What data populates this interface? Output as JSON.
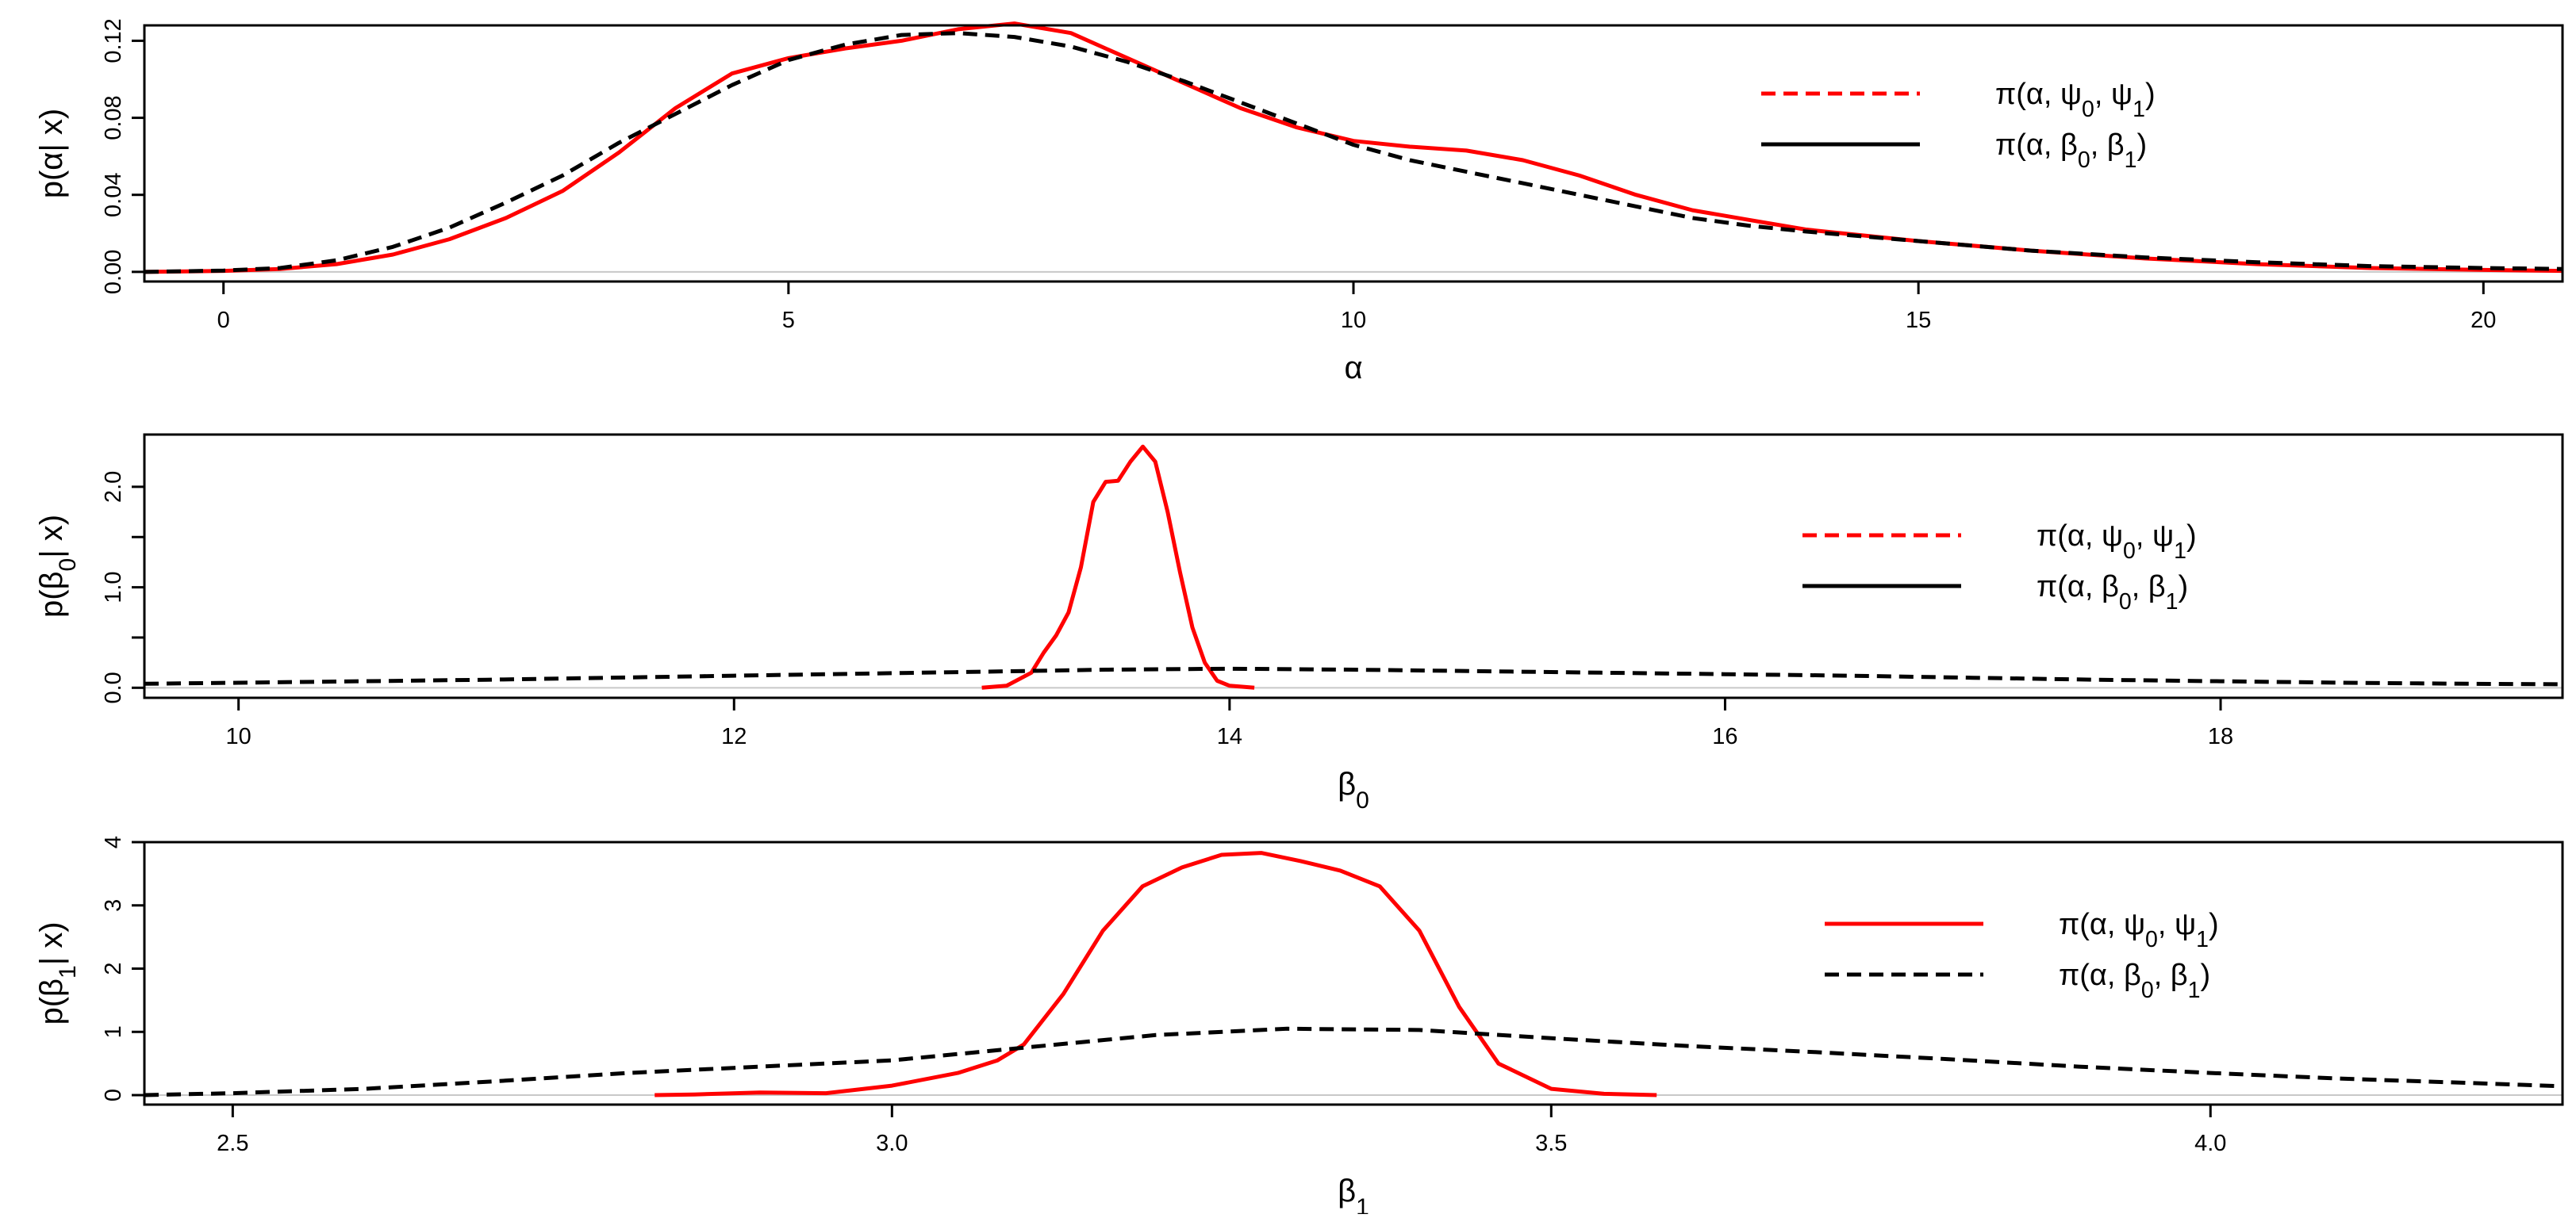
{
  "chart_data": [
    {
      "type": "line",
      "xlabel": "α",
      "ylabel": "p(α| x)",
      "xlim": [
        -0.7,
        20.7
      ],
      "ylim": [
        -0.005,
        0.128
      ],
      "xticks": [
        0,
        5,
        10,
        15,
        20
      ],
      "xtick_labels": [
        "0",
        "5",
        "10",
        "15",
        "20"
      ],
      "yticks": [
        0,
        0.04,
        0.08,
        0.12
      ],
      "ytick_labels": [
        "0.00",
        "0.04",
        "0.08",
        "0.12"
      ],
      "zero_line": true,
      "legend_position": "top-right",
      "legend": [
        {
          "label": "π(α, ψ0, ψ1)",
          "parts": [
            [
              "π(α, ψ",
              ""
            ],
            [
              "0",
              "sub"
            ],
            [
              ", ψ",
              ""
            ],
            [
              "1",
              "sub"
            ],
            [
              ")",
              ""
            ]
          ],
          "color": "#ff0000",
          "dash": "dashed"
        },
        {
          "label": "π(α, β0, β1)",
          "parts": [
            [
              "π(α, β",
              ""
            ],
            [
              "0",
              "sub"
            ],
            [
              ", β",
              ""
            ],
            [
              "1",
              "sub"
            ],
            [
              ")",
              ""
            ]
          ],
          "color": "#000000",
          "dash": "solid"
        }
      ],
      "series": [
        {
          "color": "#ff0000",
          "dash": "solid",
          "x": [
            -0.7,
            0,
            0.5,
            1,
            1.5,
            2,
            2.5,
            3,
            3.5,
            4,
            4.5,
            5,
            5.5,
            6,
            6.5,
            7,
            7.5,
            8,
            8.5,
            9,
            9.5,
            10,
            10.5,
            11,
            11.5,
            12,
            12.5,
            13,
            13.5,
            14,
            15,
            16,
            17,
            18,
            19,
            20,
            20.7
          ],
          "y": [
            0.0,
            0.0005,
            0.0015,
            0.004,
            0.009,
            0.017,
            0.028,
            0.042,
            0.062,
            0.085,
            0.103,
            0.111,
            0.116,
            0.12,
            0.126,
            0.129,
            0.124,
            0.111,
            0.098,
            0.085,
            0.075,
            0.068,
            0.065,
            0.063,
            0.058,
            0.05,
            0.04,
            0.032,
            0.027,
            0.022,
            0.016,
            0.011,
            0.007,
            0.004,
            0.002,
            0.001,
            0.0005
          ]
        },
        {
          "color": "#000000",
          "dash": "dashed",
          "x": [
            -0.7,
            0,
            0.5,
            1,
            1.5,
            2,
            2.5,
            3,
            3.5,
            4,
            4.5,
            5,
            5.5,
            6,
            6.5,
            7,
            7.5,
            8,
            8.5,
            9,
            9.5,
            10,
            10.5,
            11,
            11.5,
            12,
            12.5,
            13,
            13.5,
            14,
            15,
            16,
            17,
            18,
            19,
            20,
            20.7
          ],
          "y": [
            0.0,
            0.0007,
            0.002,
            0.006,
            0.013,
            0.023,
            0.036,
            0.05,
            0.067,
            0.082,
            0.097,
            0.11,
            0.118,
            0.123,
            0.124,
            0.122,
            0.117,
            0.109,
            0.099,
            0.088,
            0.077,
            0.066,
            0.058,
            0.052,
            0.046,
            0.04,
            0.034,
            0.028,
            0.024,
            0.021,
            0.016,
            0.011,
            0.0075,
            0.005,
            0.003,
            0.002,
            0.0015
          ]
        }
      ]
    },
    {
      "type": "line",
      "xlabel": "β0",
      "xlabel_parts": [
        [
          "β",
          ""
        ],
        [
          "0",
          "sub"
        ]
      ],
      "ylabel": "p(β0| x)",
      "ylabel_parts": [
        [
          "p(β",
          ""
        ],
        [
          "0",
          "sub"
        ],
        [
          "| x)",
          ""
        ]
      ],
      "xlim": [
        9.62,
        19.38
      ],
      "ylim": [
        -0.1,
        2.52
      ],
      "xticks": [
        10,
        12,
        14,
        16,
        18
      ],
      "xtick_labels": [
        "10",
        "12",
        "14",
        "16",
        "18"
      ],
      "yticks": [
        0.0,
        0.5,
        1.0,
        1.5,
        2.0
      ],
      "ytick_labels": [
        "0.0",
        "",
        "1.0",
        "",
        "2.0"
      ],
      "zero_line": true,
      "legend_position": "top-right",
      "legend": [
        {
          "label": "π(α, ψ0, ψ1)",
          "parts": [
            [
              "π(α, ψ",
              ""
            ],
            [
              "0",
              "sub"
            ],
            [
              ", ψ",
              ""
            ],
            [
              "1",
              "sub"
            ],
            [
              ")",
              ""
            ]
          ],
          "color": "#ff0000",
          "dash": "dashed"
        },
        {
          "label": "π(α, β0, β1)",
          "parts": [
            [
              "π(α, β",
              ""
            ],
            [
              "0",
              "sub"
            ],
            [
              ", β",
              ""
            ],
            [
              "1",
              "sub"
            ],
            [
              ")",
              ""
            ]
          ],
          "color": "#000000",
          "dash": "solid"
        }
      ],
      "series": [
        {
          "color": "#ff0000",
          "dash": "solid",
          "x": [
            13.0,
            13.1,
            13.2,
            13.25,
            13.3,
            13.35,
            13.4,
            13.45,
            13.5,
            13.55,
            13.6,
            13.65,
            13.7,
            13.75,
            13.8,
            13.85,
            13.9,
            13.95,
            14.0,
            14.1
          ],
          "y": [
            0.0,
            0.02,
            0.15,
            0.35,
            0.52,
            0.75,
            1.2,
            1.85,
            2.05,
            2.06,
            2.25,
            2.4,
            2.25,
            1.75,
            1.15,
            0.6,
            0.25,
            0.07,
            0.02,
            0.0
          ]
        },
        {
          "color": "#000000",
          "dash": "dashed",
          "x": [
            9.62,
            10,
            10.5,
            11,
            11.5,
            12,
            12.5,
            13,
            13.5,
            14,
            14.5,
            15,
            15.5,
            16,
            16.5,
            17,
            17.5,
            18,
            18.5,
            19,
            19.38
          ],
          "y": [
            0.04,
            0.05,
            0.065,
            0.08,
            0.1,
            0.12,
            0.14,
            0.16,
            0.18,
            0.19,
            0.18,
            0.165,
            0.15,
            0.135,
            0.12,
            0.1,
            0.08,
            0.065,
            0.05,
            0.04,
            0.035
          ]
        }
      ]
    },
    {
      "type": "line",
      "xlabel": "β1",
      "xlabel_parts": [
        [
          "β",
          ""
        ],
        [
          "1",
          "sub"
        ]
      ],
      "ylabel": "p(β1| x)",
      "ylabel_parts": [
        [
          "p(β",
          ""
        ],
        [
          "1",
          "sub"
        ],
        [
          "| x)",
          ""
        ]
      ],
      "xlim": [
        2.433,
        4.267
      ],
      "ylim": [
        -0.15,
        4.0
      ],
      "xticks": [
        2.5,
        3.0,
        3.5,
        4.0
      ],
      "xtick_labels": [
        "2.5",
        "3.0",
        "3.5",
        "4.0"
      ],
      "yticks": [
        0,
        1,
        2,
        3,
        4
      ],
      "ytick_labels": [
        "0",
        "1",
        "2",
        "3",
        "4"
      ],
      "zero_line": true,
      "legend_position": "top-right",
      "legend": [
        {
          "label": "π(α, ψ0, ψ1)",
          "parts": [
            [
              "π(α, ψ",
              ""
            ],
            [
              "0",
              "sub"
            ],
            [
              ", ψ",
              ""
            ],
            [
              "1",
              "sub"
            ],
            [
              ")",
              ""
            ]
          ],
          "color": "#ff0000",
          "dash": "solid"
        },
        {
          "label": "π(α, β0, β1)",
          "parts": [
            [
              "π(α, β",
              ""
            ],
            [
              "0",
              "sub"
            ],
            [
              ", β",
              ""
            ],
            [
              "1",
              "sub"
            ],
            [
              ")",
              ""
            ]
          ],
          "color": "#000000",
          "dash": "dashed"
        }
      ],
      "series": [
        {
          "color": "#ff0000",
          "dash": "solid",
          "x": [
            2.82,
            2.85,
            2.9,
            2.95,
            3.0,
            3.05,
            3.08,
            3.1,
            3.13,
            3.16,
            3.19,
            3.22,
            3.25,
            3.28,
            3.31,
            3.34,
            3.37,
            3.4,
            3.43,
            3.46,
            3.5,
            3.54,
            3.58
          ],
          "y": [
            0.0,
            0.01,
            0.04,
            0.03,
            0.15,
            0.35,
            0.55,
            0.8,
            1.6,
            2.6,
            3.3,
            3.6,
            3.8,
            3.83,
            3.7,
            3.55,
            3.3,
            2.6,
            1.4,
            0.5,
            0.1,
            0.02,
            0.0
          ]
        },
        {
          "color": "#000000",
          "dash": "dashed",
          "x": [
            2.433,
            2.5,
            2.6,
            2.7,
            2.8,
            2.9,
            3.0,
            3.1,
            3.2,
            3.3,
            3.4,
            3.5,
            3.6,
            3.7,
            3.8,
            3.9,
            4.0,
            4.1,
            4.2,
            4.267
          ],
          "y": [
            0.0,
            0.03,
            0.1,
            0.22,
            0.35,
            0.45,
            0.55,
            0.75,
            0.95,
            1.05,
            1.03,
            0.9,
            0.78,
            0.68,
            0.57,
            0.45,
            0.35,
            0.26,
            0.19,
            0.14
          ]
        }
      ]
    }
  ]
}
